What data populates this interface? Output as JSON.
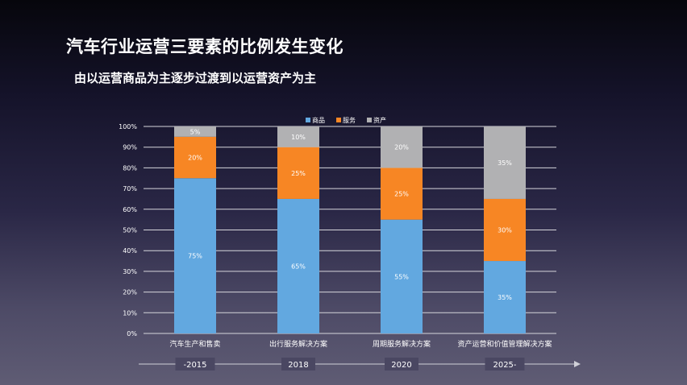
{
  "header": {
    "title": "汽车行业运营三要素的比例发生变化",
    "subtitle": "由以运营商品为主逐步过渡到以运营资产为主"
  },
  "chart_data": {
    "type": "bar",
    "stacked": true,
    "categories": [
      "汽车生产和售卖",
      "出行服务解决方案",
      "周期服务解决方案",
      "资产运营和价值管理解决方案"
    ],
    "series": [
      {
        "name": "商品",
        "color": "#62a8e0",
        "values": [
          75,
          65,
          55,
          35
        ],
        "labels": [
          "75%",
          "65%",
          "55%",
          "35%"
        ]
      },
      {
        "name": "服务",
        "color": "#f78624",
        "values": [
          20,
          25,
          25,
          30
        ],
        "labels": [
          "20%",
          "25%",
          "25%",
          "30%"
        ]
      },
      {
        "name": "资产",
        "color": "#b1b1b3",
        "values": [
          5,
          10,
          20,
          35
        ],
        "labels": [
          "5%",
          "10%",
          "20%",
          "35%"
        ]
      }
    ],
    "y_ticks": [
      "0%",
      "10%",
      "20%",
      "30%",
      "40%",
      "50%",
      "60%",
      "70%",
      "80%",
      "90%",
      "100%"
    ],
    "ylim": [
      0,
      100
    ],
    "grid": true,
    "legend_position": "top-center"
  },
  "timeline": {
    "labels": [
      "-2015",
      "2018",
      "2020",
      "2025-"
    ]
  }
}
